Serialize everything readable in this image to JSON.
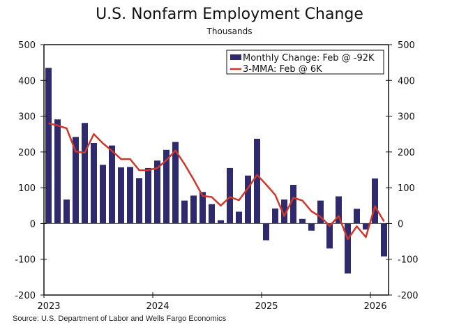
{
  "chart_data": {
    "type": "bar",
    "title": "U.S. Nonfarm Employment Change",
    "subtitle": "Thousands",
    "source": "Source: U.S. Department of Labor and Wells Fargo Economics",
    "xlabel": "",
    "ylabel": "",
    "ylim": [
      -200,
      500
    ],
    "yticks": [
      500,
      400,
      300,
      200,
      100,
      0,
      -100,
      -200
    ],
    "ytick_labels": [
      "500",
      "400",
      "300",
      "200",
      "100",
      "0",
      "-100",
      "-200"
    ],
    "xtick_labels": [
      "2023",
      "2024",
      "2025",
      "2026"
    ],
    "grid": false,
    "legend_position": "top-right",
    "categories": [
      "Jan 2023",
      "Feb 2023",
      "Mar 2023",
      "Apr 2023",
      "May 2023",
      "Jun 2023",
      "Jul 2023",
      "Aug 2023",
      "Sep 2023",
      "Oct 2023",
      "Nov 2023",
      "Dec 2023",
      "Jan 2024",
      "Feb 2024",
      "Mar 2024",
      "Apr 2024",
      "May 2024",
      "Jun 2024",
      "Jul 2024",
      "Aug 2024",
      "Sep 2024",
      "Oct 2024",
      "Nov 2024",
      "Dec 2024",
      "Jan 2025",
      "Feb 2025",
      "Mar 2025",
      "Apr 2025",
      "May 2025",
      "Jun 2025",
      "Jul 2025",
      "Aug 2025",
      "Sep 2025",
      "Oct 2025",
      "Nov 2025",
      "Dec 2025",
      "Jan 2026",
      "Feb 2026"
    ],
    "series": [
      {
        "name": "Monthly Change: Feb @ -92K",
        "type": "bar",
        "color": "#2f2a6e",
        "values": [
          435,
          291,
          67,
          242,
          281,
          225,
          164,
          218,
          157,
          158,
          127,
          155,
          176,
          206,
          228,
          64,
          78,
          88,
          54,
          9,
          155,
          33,
          134,
          237,
          -47,
          42,
          67,
          108,
          13,
          -20,
          64,
          -70,
          76,
          -140,
          41,
          -17,
          126,
          -92
        ]
      },
      {
        "name": "3-MMA: Feb @ 6K",
        "type": "line",
        "color": "#d0372a",
        "values": [
          280,
          274,
          266,
          201,
          198,
          250,
          224,
          203,
          180,
          180,
          149,
          149,
          155,
          177,
          204,
          166,
          123,
          77,
          74,
          50,
          74,
          65,
          99,
          136,
          109,
          80,
          21,
          72,
          64,
          34,
          19,
          -7,
          21,
          -44,
          -8,
          -38,
          48,
          6
        ]
      }
    ]
  }
}
